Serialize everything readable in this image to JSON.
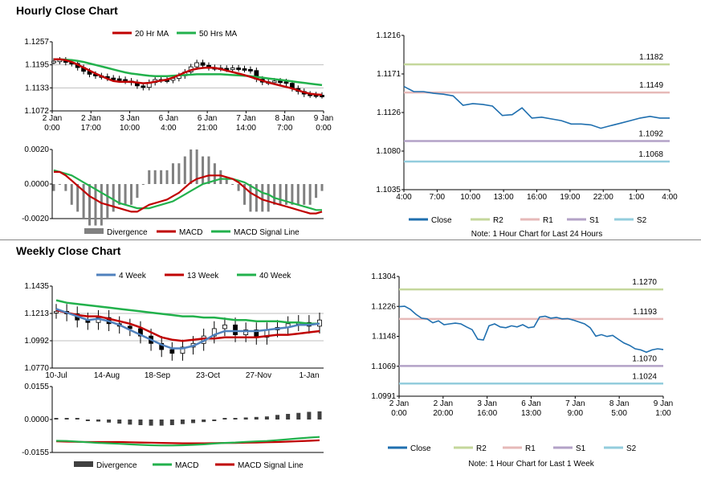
{
  "hourly": {
    "title": "Hourly Close Chart",
    "price": {
      "ylim": [
        1.1072,
        1.1257
      ],
      "yticks": [
        "1.1257",
        "1.1195",
        "1.1133",
        "1.1072"
      ],
      "xticks": [
        "2 Jan\n0:00",
        "2 Jan\n17:00",
        "3 Jan\n10:00",
        "6 Jan\n4:00",
        "6 Jan\n21:00",
        "7 Jan\n14:00",
        "8 Jan\n7:00",
        "9 Jan\n0:00"
      ],
      "legend": [
        "20 Hr MA",
        "50 Hrs MA"
      ],
      "colors": {
        "ma20": "#c00000",
        "ma50": "#22b14c",
        "candle": "#000000"
      },
      "close": [
        1.1205,
        1.1208,
        1.1202,
        1.1199,
        1.1188,
        1.1178,
        1.117,
        1.1166,
        1.1164,
        1.116,
        1.1158,
        1.1156,
        1.1152,
        1.1148,
        1.1139,
        1.1135,
        1.1148,
        1.1156,
        1.1155,
        1.1154,
        1.1159,
        1.1166,
        1.1176,
        1.119,
        1.1201,
        1.1194,
        1.1188,
        1.1187,
        1.1186,
        1.1184,
        1.1187,
        1.1185,
        1.1183,
        1.118,
        1.1157,
        1.1149,
        1.115,
        1.1152,
        1.115,
        1.1146,
        1.1132,
        1.1124,
        1.1117,
        1.1115,
        1.1114,
        1.1113
      ],
      "ma20": [
        1.121,
        1.121,
        1.1208,
        1.1203,
        1.1196,
        1.1188,
        1.118,
        1.1172,
        1.1165,
        1.1158,
        1.1152,
        1.115,
        1.115,
        1.115,
        1.1148,
        1.1146,
        1.1147,
        1.115,
        1.1153,
        1.1156,
        1.1161,
        1.1168,
        1.1175,
        1.1181,
        1.1185,
        1.1187,
        1.1188,
        1.1187,
        1.1184,
        1.118,
        1.1176,
        1.1172,
        1.1168,
        1.1163,
        1.1158,
        1.1153,
        1.1148,
        1.1144,
        1.114,
        1.1136,
        1.1132,
        1.1127,
        1.1122,
        1.1118,
        1.1116,
        1.1115
      ],
      "ma50": [
        1.121,
        1.121,
        1.1209,
        1.1208,
        1.1206,
        1.1203,
        1.1199,
        1.1195,
        1.1191,
        1.1187,
        1.1183,
        1.1179,
        1.1175,
        1.1172,
        1.117,
        1.1168,
        1.1166,
        1.1165,
        1.1165,
        1.1165,
        1.1166,
        1.1167,
        1.1168,
        1.1169,
        1.117,
        1.117,
        1.117,
        1.117,
        1.117,
        1.1169,
        1.1168,
        1.1167,
        1.1166,
        1.1165,
        1.1163,
        1.1161,
        1.1159,
        1.1157,
        1.1155,
        1.1153,
        1.1151,
        1.1149,
        1.1147,
        1.1145,
        1.1143,
        1.1141
      ]
    },
    "macd": {
      "ylim": [
        -0.002,
        0.002
      ],
      "yticks": [
        "0.0020",
        "0.0000",
        "-0.0020"
      ],
      "legend": [
        "Divergence",
        "MACD",
        "MACD Signal Line"
      ],
      "colors": {
        "divergence": "#808080",
        "macd": "#c00000",
        "signal": "#22b14c"
      },
      "macd": [
        0.0007,
        0.0007,
        0.0005,
        0.0002,
        -0.0001,
        -0.0004,
        -0.0007,
        -0.0009,
        -0.0011,
        -0.0012,
        -0.0013,
        -0.0014,
        -0.0015,
        -0.0016,
        -0.0016,
        -0.0014,
        -0.0012,
        -0.0011,
        -0.001,
        -0.0009,
        -0.0007,
        -0.0005,
        -0.0002,
        0.0001,
        0.0003,
        0.0004,
        0.0005,
        0.0005,
        0.0005,
        0.0004,
        0.0003,
        0.0001,
        -0.0002,
        -0.0005,
        -0.0007,
        -0.0009,
        -0.001,
        -0.0011,
        -0.0012,
        -0.0013,
        -0.0014,
        -0.0015,
        -0.0016,
        -0.0017,
        -0.0017,
        -0.0016
      ],
      "signal": [
        0.0008,
        0.0007,
        0.0006,
        0.0005,
        0.0003,
        0.0001,
        -0.0001,
        -0.0003,
        -0.0005,
        -0.0007,
        -0.0009,
        -0.0011,
        -0.0012,
        -0.0013,
        -0.0014,
        -0.0014,
        -0.0014,
        -0.0013,
        -0.0012,
        -0.0011,
        -0.001,
        -0.0008,
        -0.0006,
        -0.0004,
        -0.0002,
        0.0,
        0.0001,
        0.0002,
        0.0003,
        0.0003,
        0.0003,
        0.0002,
        0.0001,
        -0.0001,
        -0.0003,
        -0.0005,
        -0.0006,
        -0.0008,
        -0.0009,
        -0.001,
        -0.0011,
        -0.0012,
        -0.0013,
        -0.0014,
        -0.0015,
        -0.0015
      ]
    },
    "levels": {
      "ylim": [
        1.1035,
        1.1216
      ],
      "yticks": [
        "1.1216",
        "1.1171",
        "1.1126",
        "1.1080",
        "1.1035"
      ],
      "xticks": [
        "4:00",
        "7:00",
        "10:00",
        "13:00",
        "16:00",
        "19:00",
        "22:00",
        "1:00",
        "4:00"
      ],
      "R2": 1.1182,
      "R1": 1.1149,
      "S1": 1.1092,
      "S2": 1.1068,
      "labels": {
        "R2": "1.1182",
        "R1": "1.1149",
        "S1": "1.1092",
        "S2": "1.1068"
      },
      "close": [
        1.1156,
        1.115,
        1.115,
        1.1148,
        1.1147,
        1.1145,
        1.1134,
        1.1136,
        1.1135,
        1.1133,
        1.1122,
        1.1123,
        1.1131,
        1.1119,
        1.112,
        1.1118,
        1.1116,
        1.1112,
        1.1112,
        1.1111,
        1.1107,
        1.111,
        1.1113,
        1.1116,
        1.1119,
        1.1121,
        1.1119,
        1.1119
      ],
      "legend": [
        "Close",
        "R2",
        "R1",
        "S1",
        "S2"
      ],
      "note": "Note: 1 Hour Chart for Last 24 Hours",
      "colors": {
        "close": "#1f6faf",
        "R2": "#c4d79b",
        "R1": "#e6b9b8",
        "S1": "#b3a2c7",
        "S2": "#93cddd"
      }
    }
  },
  "weekly": {
    "title": "Weekly Close Chart",
    "price": {
      "ylim": [
        1.077,
        1.1435
      ],
      "yticks": [
        "1.1435",
        "1.1213",
        "1.0992",
        "1.0770"
      ],
      "xticks": [
        "10-Jul",
        "14-Aug",
        "18-Sep",
        "23-Oct",
        "27-Nov",
        "1-Jan"
      ],
      "legend": [
        "4 Week",
        "13 Week",
        "40 Week"
      ],
      "colors": {
        "w4": "#4f81bd",
        "w13": "#c00000",
        "w40": "#22b14c"
      },
      "close": [
        1.123,
        1.121,
        1.116,
        1.114,
        1.118,
        1.113,
        1.111,
        1.109,
        1.103,
        1.097,
        1.092,
        1.089,
        1.094,
        1.097,
        1.103,
        1.109,
        1.112,
        1.104,
        1.108,
        1.102,
        1.108,
        1.11,
        1.113,
        1.114,
        1.111,
        1.116
      ],
      "w4": [
        1.125,
        1.122,
        1.119,
        1.116,
        1.117,
        1.115,
        1.112,
        1.108,
        1.104,
        1.1,
        1.096,
        1.093,
        1.093,
        1.095,
        1.099,
        1.104,
        1.107,
        1.107,
        1.107,
        1.107,
        1.108,
        1.109,
        1.11,
        1.112,
        1.112,
        1.113
      ],
      "w13": [
        1.124,
        1.122,
        1.12,
        1.119,
        1.119,
        1.117,
        1.115,
        1.113,
        1.11,
        1.106,
        1.102,
        1.1,
        1.099,
        1.1,
        1.101,
        1.101,
        1.102,
        1.102,
        1.102,
        1.102,
        1.103,
        1.104,
        1.104,
        1.105,
        1.106,
        1.107
      ],
      "w40": [
        1.132,
        1.13,
        1.129,
        1.128,
        1.127,
        1.126,
        1.125,
        1.124,
        1.123,
        1.122,
        1.121,
        1.12,
        1.119,
        1.119,
        1.118,
        1.118,
        1.117,
        1.116,
        1.116,
        1.115,
        1.115,
        1.115,
        1.114,
        1.114,
        1.113,
        1.113
      ]
    },
    "macd": {
      "ylim": [
        -0.0155,
        0.0155
      ],
      "yticks": [
        "0.0155",
        "0.0000",
        "-0.0155"
      ],
      "legend": [
        "Divergence",
        "MACD",
        "MACD Signal Line"
      ],
      "colors": {
        "divergence": "#404040",
        "macd": "#22b14c",
        "signal": "#c00000"
      },
      "macd": [
        -0.01,
        -0.0101,
        -0.0104,
        -0.0107,
        -0.011,
        -0.0112,
        -0.0114,
        -0.0117,
        -0.0119,
        -0.0121,
        -0.0122,
        -0.0122,
        -0.0121,
        -0.0119,
        -0.0117,
        -0.0113,
        -0.011,
        -0.0108,
        -0.0105,
        -0.0103,
        -0.0101,
        -0.0097,
        -0.0093,
        -0.0089,
        -0.0085,
        -0.0082
      ],
      "signal": [
        -0.0103,
        -0.0104,
        -0.0105,
        -0.0106,
        -0.0106,
        -0.0106,
        -0.0106,
        -0.0107,
        -0.0108,
        -0.0109,
        -0.011,
        -0.0111,
        -0.0112,
        -0.0112,
        -0.0112,
        -0.0111,
        -0.011,
        -0.011,
        -0.0109,
        -0.0108,
        -0.0107,
        -0.0106,
        -0.0104,
        -0.0102,
        -0.01,
        -0.0098
      ]
    },
    "levels": {
      "ylim": [
        1.0991,
        1.1304
      ],
      "yticks": [
        "1.1304",
        "1.1226",
        "1.1148",
        "1.1069",
        "1.0991"
      ],
      "xticks": [
        "2 Jan\n0:00",
        "2 Jan\n20:00",
        "3 Jan\n16:00",
        "6 Jan\n13:00",
        "7 Jan\n9:00",
        "8 Jan\n5:00",
        "9 Jan\n1:00"
      ],
      "R2": 1.127,
      "R1": 1.1193,
      "S1": 1.107,
      "S2": 1.1024,
      "labels": {
        "R2": "1.1270",
        "R1": "1.1193",
        "S1": "1.1070",
        "S2": "1.1024"
      },
      "close": [
        1.1225,
        1.1226,
        1.1218,
        1.1205,
        1.1195,
        1.1193,
        1.1183,
        1.1188,
        1.1178,
        1.118,
        1.1182,
        1.118,
        1.1172,
        1.1165,
        1.114,
        1.1138,
        1.1175,
        1.118,
        1.1172,
        1.117,
        1.1175,
        1.1172,
        1.1178,
        1.117,
        1.1172,
        1.1198,
        1.12,
        1.1195,
        1.1197,
        1.1193,
        1.1194,
        1.119,
        1.1185,
        1.118,
        1.117,
        1.1148,
        1.1152,
        1.1147,
        1.115,
        1.114,
        1.113,
        1.1124,
        1.1115,
        1.1112,
        1.1106,
        1.1112,
        1.1115,
        1.1113
      ],
      "legend": [
        "Close",
        "R2",
        "R1",
        "S1",
        "S2"
      ],
      "note": "Note: 1 Hour Chart for Last 1 Week",
      "colors": {
        "close": "#1f6faf",
        "R2": "#c4d79b",
        "R1": "#e6b9b8",
        "S1": "#b3a2c7",
        "S2": "#93cddd"
      }
    }
  }
}
